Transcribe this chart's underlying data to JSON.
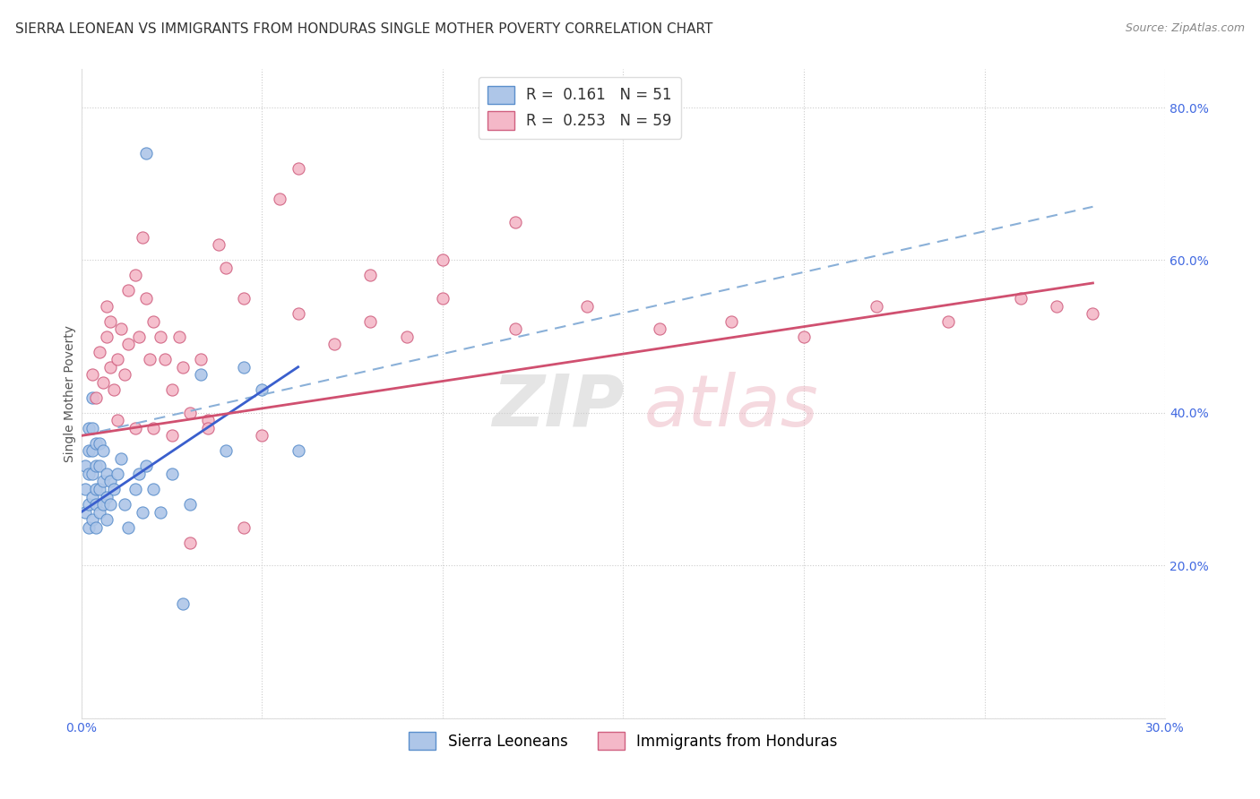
{
  "title": "SIERRA LEONEAN VS IMMIGRANTS FROM HONDURAS SINGLE MOTHER POVERTY CORRELATION CHART",
  "source": "Source: ZipAtlas.com",
  "ylabel": "Single Mother Poverty",
  "xlim": [
    0.0,
    0.3
  ],
  "ylim": [
    0.0,
    0.85
  ],
  "x_ticks": [
    0.0,
    0.05,
    0.1,
    0.15,
    0.2,
    0.25,
    0.3
  ],
  "y_ticks": [
    0.0,
    0.2,
    0.4,
    0.6,
    0.8
  ],
  "y_tick_labels": [
    "",
    "20.0%",
    "40.0%",
    "60.0%",
    "80.0%"
  ],
  "legend_label1": "Sierra Leoneans",
  "legend_label2": "Immigrants from Honduras",
  "R1": 0.161,
  "N1": 51,
  "R2": 0.253,
  "N2": 59,
  "color_blue": "#aec6e8",
  "color_pink": "#f4b8c8",
  "edge_blue": "#5b8fcc",
  "edge_pink": "#d06080",
  "trend_blue": "#3a5fcd",
  "trend_pink": "#d05070",
  "dash_color": "#8ab0d8",
  "background_color": "#ffffff",
  "title_fontsize": 11,
  "axis_fontsize": 10,
  "tick_fontsize": 10,
  "legend_fontsize": 12,
  "tick_color": "#4169e1",
  "sierra_x": [
    0.001,
    0.001,
    0.001,
    0.002,
    0.002,
    0.002,
    0.002,
    0.002,
    0.003,
    0.003,
    0.003,
    0.003,
    0.003,
    0.003,
    0.004,
    0.004,
    0.004,
    0.004,
    0.004,
    0.005,
    0.005,
    0.005,
    0.005,
    0.006,
    0.006,
    0.006,
    0.007,
    0.007,
    0.007,
    0.008,
    0.008,
    0.009,
    0.01,
    0.011,
    0.012,
    0.013,
    0.015,
    0.016,
    0.017,
    0.018,
    0.02,
    0.022,
    0.025,
    0.028,
    0.03,
    0.033,
    0.018,
    0.04,
    0.045,
    0.05,
    0.06
  ],
  "sierra_y": [
    0.27,
    0.3,
    0.33,
    0.25,
    0.28,
    0.32,
    0.35,
    0.38,
    0.26,
    0.29,
    0.32,
    0.35,
    0.38,
    0.42,
    0.25,
    0.28,
    0.3,
    0.33,
    0.36,
    0.27,
    0.3,
    0.33,
    0.36,
    0.28,
    0.31,
    0.35,
    0.26,
    0.29,
    0.32,
    0.28,
    0.31,
    0.3,
    0.32,
    0.34,
    0.28,
    0.25,
    0.3,
    0.32,
    0.27,
    0.33,
    0.3,
    0.27,
    0.32,
    0.15,
    0.28,
    0.45,
    0.74,
    0.35,
    0.46,
    0.43,
    0.35
  ],
  "honduras_x": [
    0.003,
    0.004,
    0.005,
    0.006,
    0.007,
    0.007,
    0.008,
    0.008,
    0.009,
    0.01,
    0.011,
    0.012,
    0.013,
    0.013,
    0.015,
    0.016,
    0.017,
    0.018,
    0.019,
    0.02,
    0.022,
    0.023,
    0.025,
    0.027,
    0.028,
    0.03,
    0.033,
    0.035,
    0.038,
    0.04,
    0.045,
    0.05,
    0.055,
    0.06,
    0.07,
    0.08,
    0.09,
    0.1,
    0.12,
    0.14,
    0.16,
    0.18,
    0.2,
    0.22,
    0.24,
    0.26,
    0.27,
    0.28,
    0.06,
    0.08,
    0.1,
    0.12,
    0.035,
    0.045,
    0.03,
    0.025,
    0.02,
    0.015,
    0.01
  ],
  "honduras_y": [
    0.45,
    0.42,
    0.48,
    0.44,
    0.5,
    0.54,
    0.46,
    0.52,
    0.43,
    0.47,
    0.51,
    0.45,
    0.49,
    0.56,
    0.58,
    0.5,
    0.63,
    0.55,
    0.47,
    0.52,
    0.5,
    0.47,
    0.43,
    0.5,
    0.46,
    0.4,
    0.47,
    0.39,
    0.62,
    0.59,
    0.55,
    0.37,
    0.68,
    0.53,
    0.49,
    0.52,
    0.5,
    0.55,
    0.51,
    0.54,
    0.51,
    0.52,
    0.5,
    0.54,
    0.52,
    0.55,
    0.54,
    0.53,
    0.72,
    0.58,
    0.6,
    0.65,
    0.38,
    0.25,
    0.23,
    0.37,
    0.38,
    0.38,
    0.39
  ],
  "blue_trend_x0": 0.0,
  "blue_trend_y0": 0.27,
  "blue_trend_x1": 0.06,
  "blue_trend_y1": 0.46,
  "pink_trend_x0": 0.0,
  "pink_trend_y0": 0.37,
  "pink_trend_x1": 0.28,
  "pink_trend_y1": 0.57,
  "dash_trend_x0": 0.0,
  "dash_trend_y0": 0.37,
  "dash_trend_x1": 0.28,
  "dash_trend_y1": 0.67
}
